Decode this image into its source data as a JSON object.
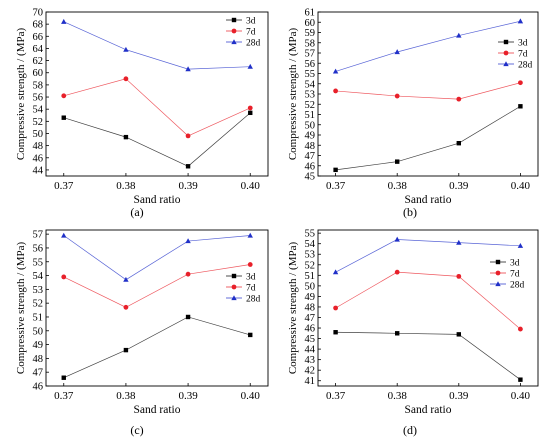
{
  "figure": {
    "panels": [
      "(a)",
      "(b)",
      "(c)",
      "(d)"
    ]
  },
  "chart_data": [
    {
      "type": "line",
      "label": "(a)",
      "xlabel": "Sand ratio",
      "ylabel": "Compressive strength / (MPa)",
      "x": [
        0.37,
        0.38,
        0.39,
        0.4
      ],
      "x_ticks": [
        "0.37",
        "0.38",
        "0.39",
        "0.40"
      ],
      "ylim": [
        43,
        70
      ],
      "y_ticks": [
        44,
        46,
        48,
        50,
        52,
        54,
        56,
        58,
        60,
        62,
        64,
        66,
        68,
        70
      ],
      "legend": "top-right",
      "series": [
        {
          "name": "3d",
          "color": "#000000",
          "marker": "square",
          "values": [
            52.6,
            49.4,
            44.6,
            53.4
          ]
        },
        {
          "name": "7d",
          "color": "#e8202a",
          "marker": "circle",
          "values": [
            56.2,
            59.0,
            49.6,
            54.2
          ]
        },
        {
          "name": "28d",
          "color": "#2030c8",
          "marker": "triangle",
          "values": [
            68.4,
            63.8,
            60.6,
            61.0
          ]
        }
      ]
    },
    {
      "type": "line",
      "label": "(b)",
      "xlabel": "Sand ratio",
      "ylabel": "Compressive strength / (MPa)",
      "x": [
        0.37,
        0.38,
        0.39,
        0.4
      ],
      "x_ticks": [
        "0.37",
        "0.38",
        "0.39",
        "0.40"
      ],
      "ylim": [
        45,
        61
      ],
      "y_ticks": [
        45,
        46,
        47,
        48,
        49,
        50,
        51,
        52,
        53,
        54,
        55,
        56,
        57,
        58,
        59,
        60,
        61
      ],
      "legend": "top-right",
      "series": [
        {
          "name": "3d",
          "color": "#000000",
          "marker": "square",
          "values": [
            45.6,
            46.4,
            48.2,
            51.8
          ]
        },
        {
          "name": "7d",
          "color": "#e8202a",
          "marker": "circle",
          "values": [
            53.3,
            52.8,
            52.5,
            54.1
          ]
        },
        {
          "name": "28d",
          "color": "#2030c8",
          "marker": "triangle",
          "values": [
            55.2,
            57.1,
            58.7,
            60.1
          ]
        }
      ]
    },
    {
      "type": "line",
      "label": "(c)",
      "xlabel": "Sand ratio",
      "ylabel": "Compressive strength / (MPa)",
      "x": [
        0.37,
        0.38,
        0.39,
        0.4
      ],
      "x_ticks": [
        "0.37",
        "0.38",
        "0.39",
        "0.40"
      ],
      "ylim": [
        46,
        57.3
      ],
      "y_ticks": [
        46,
        47,
        48,
        49,
        50,
        51,
        52,
        53,
        54,
        55,
        56,
        57
      ],
      "legend": "middle-right",
      "series": [
        {
          "name": "3d",
          "color": "#000000",
          "marker": "square",
          "values": [
            46.6,
            48.6,
            51.0,
            49.7
          ]
        },
        {
          "name": "7d",
          "color": "#e8202a",
          "marker": "circle",
          "values": [
            53.9,
            51.7,
            54.1,
            54.8
          ]
        },
        {
          "name": "28d",
          "color": "#2030c8",
          "marker": "triangle",
          "values": [
            56.9,
            53.7,
            56.5,
            56.9
          ]
        }
      ]
    },
    {
      "type": "line",
      "label": "(d)",
      "xlabel": "Sand ratio",
      "ylabel": "Compressive strength / (MPa)",
      "x": [
        0.37,
        0.38,
        0.39,
        0.4
      ],
      "x_ticks": [
        "0.37",
        "0.38",
        "0.39",
        "0.40"
      ],
      "ylim": [
        40.5,
        55.3
      ],
      "y_ticks": [
        41,
        42,
        43,
        44,
        45,
        46,
        47,
        48,
        49,
        50,
        51,
        52,
        53,
        54,
        55
      ],
      "legend": "middle-right",
      "series": [
        {
          "name": "3d",
          "color": "#000000",
          "marker": "square",
          "values": [
            45.6,
            45.5,
            45.4,
            41.1
          ]
        },
        {
          "name": "7d",
          "color": "#e8202a",
          "marker": "circle",
          "values": [
            47.9,
            51.3,
            50.9,
            45.9
          ]
        },
        {
          "name": "28d",
          "color": "#2030c8",
          "marker": "triangle",
          "values": [
            51.3,
            54.4,
            54.1,
            53.8
          ]
        }
      ]
    }
  ]
}
